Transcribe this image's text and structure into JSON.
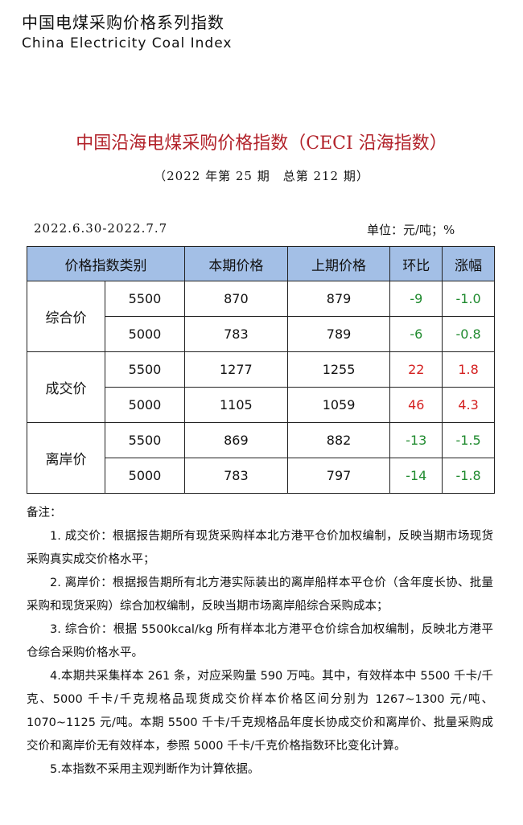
{
  "header": {
    "series_title": "中国电煤采购价格系列指数",
    "series_en": "China Electricity Coal Index"
  },
  "title": "中国沿海电煤采购价格指数（CECI 沿海指数）",
  "issue": "（2022 年第 25 期　总第 212 期）",
  "date_range": "2022.6.30-2022.7.7",
  "unit": "单位：元/吨；%",
  "table": {
    "headers": [
      "价格指数类别",
      "本期价格",
      "上期价格",
      "环比",
      "涨幅"
    ],
    "groups": [
      {
        "category": "综合价",
        "rows": [
          {
            "grade": "5500",
            "current": "870",
            "previous": "879",
            "mom": "-9",
            "pct": "-1.0"
          },
          {
            "grade": "5000",
            "current": "783",
            "previous": "789",
            "mom": "-6",
            "pct": "-0.8"
          }
        ]
      },
      {
        "category": "成交价",
        "rows": [
          {
            "grade": "5500",
            "current": "1277",
            "previous": "1255",
            "mom": "22",
            "pct": "1.8"
          },
          {
            "grade": "5000",
            "current": "1105",
            "previous": "1059",
            "mom": "46",
            "pct": "4.3"
          }
        ]
      },
      {
        "category": "离岸价",
        "rows": [
          {
            "grade": "5500",
            "current": "869",
            "previous": "882",
            "mom": "-13",
            "pct": "-1.5"
          },
          {
            "grade": "5000",
            "current": "783",
            "previous": "797",
            "mom": "-14",
            "pct": "-1.8"
          }
        ]
      }
    ],
    "colors": {
      "up": "#d42020",
      "down": "#1f8a2e",
      "header_bg": "#a3bfe6"
    }
  },
  "notes": {
    "heading": "备注：",
    "items": [
      "1. 成交价：根据报告期所有现货采购样本北方港平仓价加权编制，反映当期市场现货采购真实成交价格水平；",
      "2. 离岸价：根据报告期所有北方港实际装出的离岸船样本平仓价（含年度长协、批量采购和现货采购）综合加权编制，反映当期市场离岸船综合采购成本；",
      "3. 综合价：根据 5500kcal/kg 所有样本北方港平仓价综合加权编制，反映北方港平仓综合采购价格水平。",
      "4.本期共采集样本 261 条，对应采购量 590 万吨。其中，有效样本中 5500 千卡/千克、5000 千卡/千克规格品现货成交价样本价格区间分别为 1267~1300 元/吨、1070~1125 元/吨。本期 5500 千卡/千克规格品年度长协成交价和离岸价、批量采购成交价和离岸价无有效样本，参照 5000 千卡/千克价格指数环比变化计算。",
      "5.本指数不采用主观判断作为计算依据。"
    ]
  }
}
